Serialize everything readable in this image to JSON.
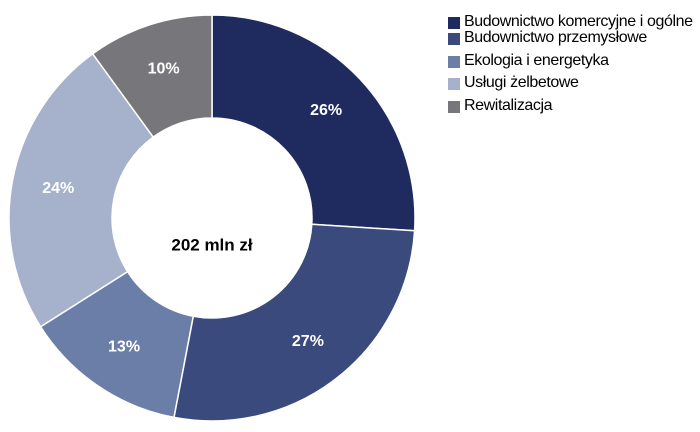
{
  "chart_data": {
    "type": "donut",
    "center_text": "202 mln zł",
    "categories": [
      "Budownictwo komercyjne i ogólne",
      "Budownictwo przemysłowe",
      "Ekologia i energetyka",
      "Usługi żelbetowe",
      "Rewitalizacja"
    ],
    "values": [
      26,
      27,
      13,
      24,
      10
    ],
    "value_labels": [
      "26%",
      "27%",
      "13%",
      "24%",
      "10%"
    ],
    "colors": [
      "#1f2b5e",
      "#3a4a7c",
      "#6a7ea8",
      "#a6b1cb",
      "#77777b"
    ]
  }
}
